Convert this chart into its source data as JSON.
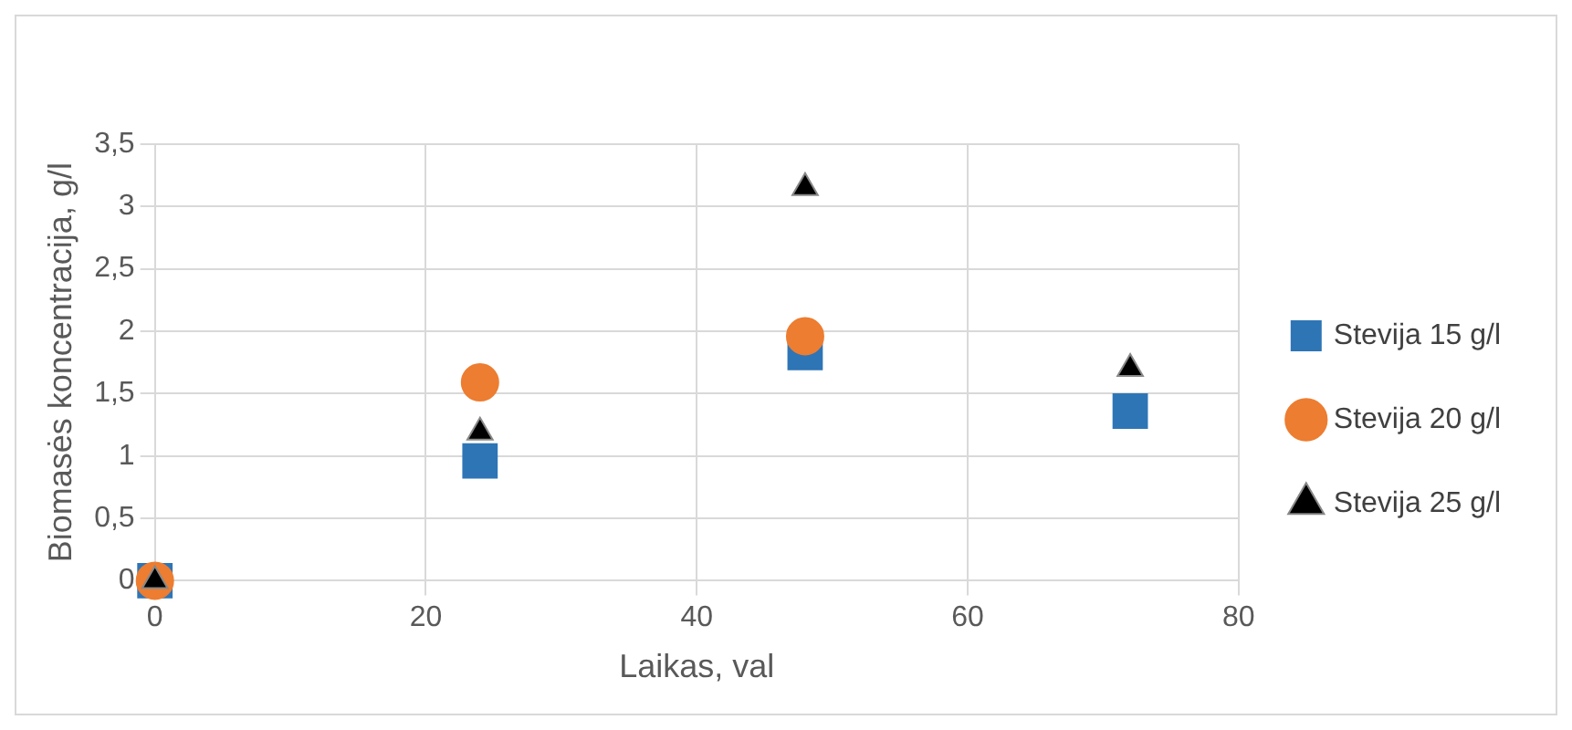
{
  "chart_data": {
    "type": "scatter",
    "xlabel": "Laikas, val",
    "ylabel": "Biomasės koncentracija, g/l",
    "xlim": [
      0,
      80
    ],
    "xticks": [
      0,
      20,
      40,
      60,
      80
    ],
    "ylim": [
      0,
      3.5
    ],
    "yticks": [
      0,
      {
        "value": 0.5,
        "label": "0,5"
      },
      1,
      {
        "value": 1.5,
        "label": "1,5"
      },
      2,
      {
        "value": 2.5,
        "label": "2,5"
      },
      3,
      {
        "value": 3.5,
        "label": "3,5"
      }
    ],
    "grid": true,
    "legend": "right",
    "series": [
      {
        "name": "Stevija 15 g/l",
        "color": "#2e75b6",
        "marker": "square",
        "x": [
          0,
          24,
          48,
          72
        ],
        "values": [
          0,
          0.96,
          1.83,
          1.36
        ]
      },
      {
        "name": "Stevija 20 g/l",
        "color": "#ed7d31",
        "marker": "circle",
        "x": [
          0,
          24,
          48
        ],
        "values": [
          0,
          1.59,
          1.96
        ]
      },
      {
        "name": "Stevija 25 g/l",
        "color": "#000000",
        "marker": "triangle",
        "x": [
          0,
          24,
          48,
          72
        ],
        "values": [
          0,
          1.19,
          3.15,
          1.7
        ]
      }
    ]
  }
}
